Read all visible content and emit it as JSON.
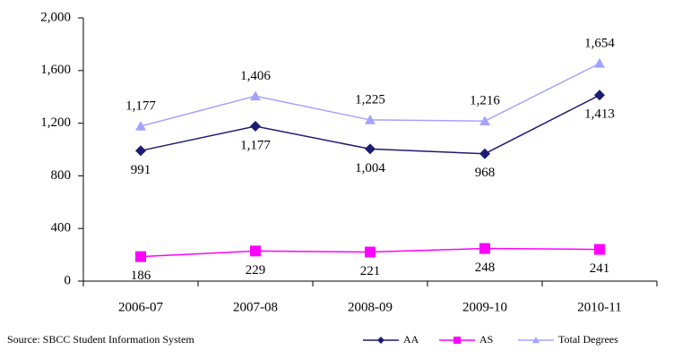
{
  "chart_data": {
    "type": "line",
    "categories": [
      "2006-07",
      "2007-08",
      "2008-09",
      "2009-10",
      "2010-11"
    ],
    "series": [
      {
        "name": "AA",
        "color": "#1c1c72",
        "marker": "diamond",
        "values": [
          991,
          1177,
          1004,
          968,
          1413
        ],
        "value_labels": [
          "991",
          "1,177",
          "1,004",
          "968",
          "1,413"
        ],
        "label_position": "below"
      },
      {
        "name": "AS",
        "color": "#ff00ff",
        "marker": "square",
        "values": [
          186,
          229,
          221,
          248,
          241
        ],
        "value_labels": [
          "186",
          "229",
          "221",
          "248",
          "241"
        ],
        "label_position": "below"
      },
      {
        "name": "Total Degrees",
        "color": "#a3a3ff",
        "marker": "triangle",
        "values": [
          1177,
          1406,
          1225,
          1216,
          1654
        ],
        "value_labels": [
          "1,177",
          "1,406",
          "1,225",
          "1,216",
          "1,654"
        ],
        "label_position": "above"
      }
    ],
    "ylim": [
      0,
      2000
    ],
    "yticks": [
      0,
      400,
      800,
      {
        "value": 1200,
        "label": "1,200"
      },
      {
        "value": 1600,
        "label": "1,600"
      },
      {
        "value": 2000,
        "label": "2,000"
      }
    ],
    "grid": false,
    "source": "Source: SBCC Student Information System",
    "legend": "bottom-right"
  }
}
